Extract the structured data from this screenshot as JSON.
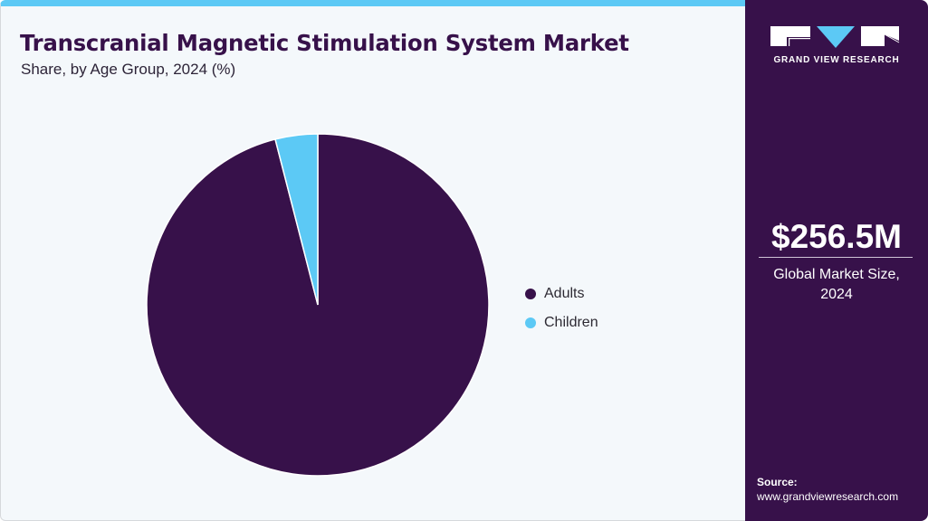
{
  "header": {
    "title": "Transcranial Magnetic Stimulation System Market",
    "subtitle": "Share, by Age Group, 2024 (%)"
  },
  "colors": {
    "accent_top_bar": "#5cc9f5",
    "brand_purple": "#37114a",
    "adults": "#37114a",
    "children": "#5cc9f5",
    "background": "#f4f8fb"
  },
  "legend": {
    "items": [
      {
        "label": "Adults",
        "color": "#37114a"
      },
      {
        "label": "Children",
        "color": "#5cc9f5"
      }
    ]
  },
  "sidebar": {
    "logo_text": "GRAND VIEW RESEARCH",
    "market_value": "$256.5M",
    "market_label_line1": "Global Market Size,",
    "market_label_line2": "2024",
    "source_label": "Source:",
    "source_url": "www.grandviewresearch.com"
  },
  "chart_data": {
    "type": "pie",
    "title": "Transcranial Magnetic Stimulation System Market",
    "subtitle": "Share, by Age Group, 2024 (%)",
    "categories": [
      "Adults",
      "Children"
    ],
    "values": [
      96,
      4
    ],
    "colors": [
      "#37114a",
      "#5cc9f5"
    ],
    "start_angle": "12 o'clock",
    "direction": "clockwise (Adults first), Children ends at top",
    "legend_position": "right",
    "data_labels": false
  }
}
